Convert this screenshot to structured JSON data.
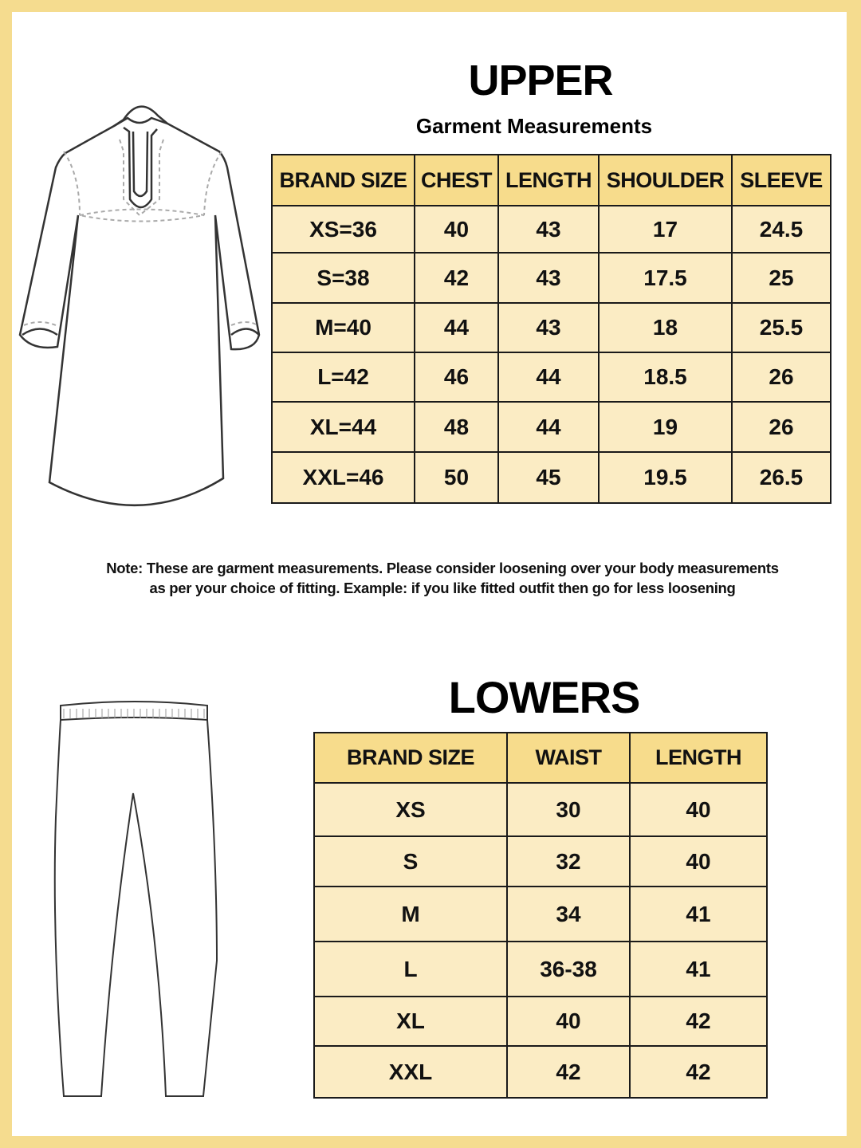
{
  "upper": {
    "title": "UPPER",
    "subtitle": "Garment Measurements",
    "headers": [
      "BRAND SIZE",
      "CHEST",
      "LENGTH",
      "SHOULDER",
      "SLEEVE"
    ],
    "rows": [
      [
        "XS=36",
        "40",
        "43",
        "17",
        "24.5"
      ],
      [
        "S=38",
        "42",
        "43",
        "17.5",
        "25"
      ],
      [
        "M=40",
        "44",
        "43",
        "18",
        "25.5"
      ],
      [
        "L=42",
        "46",
        "44",
        "18.5",
        "26"
      ],
      [
        "XL=44",
        "48",
        "44",
        "19",
        "26"
      ],
      [
        "XXL=46",
        "50",
        "45",
        "19.5",
        "26.5"
      ]
    ]
  },
  "note": {
    "line1": "Note: These are garment measurements. Please consider loosening over your body measurements",
    "line2": "as per your choice of fitting. Example: if you like fitted outfit then go for less loosening"
  },
  "lowers": {
    "title": "LOWERS",
    "headers": [
      "BRAND SIZE",
      "WAIST",
      "LENGTH"
    ],
    "rows": [
      [
        "XS",
        "30",
        "40"
      ],
      [
        "S",
        "32",
        "40"
      ],
      [
        "M",
        "34",
        "41"
      ],
      [
        "L",
        "36-38",
        "41"
      ],
      [
        "XL",
        "40",
        "42"
      ],
      [
        "XXL",
        "42",
        "42"
      ]
    ]
  },
  "colors": {
    "border": "#f5dc8f",
    "header": "#f7dc8c",
    "row": "#fbecc4"
  }
}
